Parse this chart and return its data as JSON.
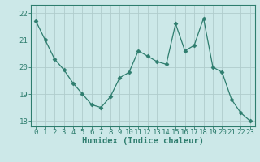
{
  "x": [
    0,
    1,
    2,
    3,
    4,
    5,
    6,
    7,
    8,
    9,
    10,
    11,
    12,
    13,
    14,
    15,
    16,
    17,
    18,
    19,
    20,
    21,
    22,
    23
  ],
  "y": [
    21.7,
    21.0,
    20.3,
    19.9,
    19.4,
    19.0,
    18.6,
    18.5,
    18.9,
    19.6,
    19.8,
    20.6,
    20.4,
    20.2,
    20.1,
    21.6,
    20.6,
    20.8,
    21.8,
    20.0,
    19.8,
    18.8,
    18.3,
    18.0
  ],
  "line_color": "#2e7d6e",
  "marker": "D",
  "marker_size": 2.5,
  "bg_color": "#cce8e8",
  "grid_color": "#b0cccc",
  "axis_color": "#2e7d6e",
  "xlabel": "Humidex (Indice chaleur)",
  "ylim": [
    17.8,
    22.3
  ],
  "yticks": [
    18,
    19,
    20,
    21,
    22
  ],
  "xticks": [
    0,
    1,
    2,
    3,
    4,
    5,
    6,
    7,
    8,
    9,
    10,
    11,
    12,
    13,
    14,
    15,
    16,
    17,
    18,
    19,
    20,
    21,
    22,
    23
  ],
  "xlabel_fontsize": 7.5,
  "tick_fontsize": 6.5
}
